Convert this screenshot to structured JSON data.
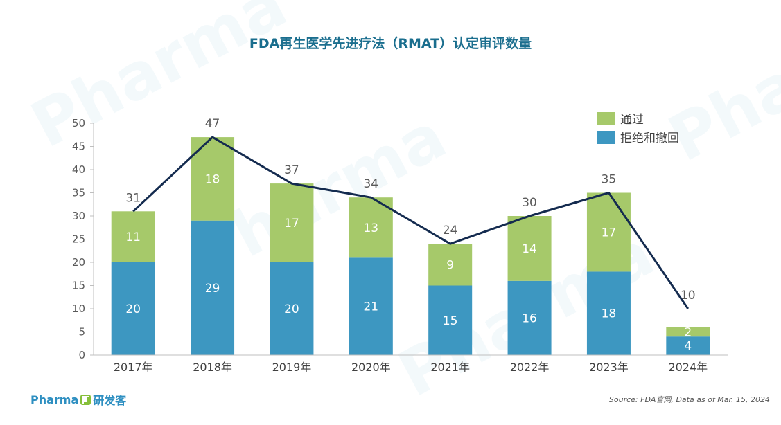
{
  "chart_data": {
    "type": "bar",
    "stacked": true,
    "title": "FDA再生医学先进疗法（RMAT）认定审评数量",
    "categories": [
      "2017年",
      "2018年",
      "2019年",
      "2020年",
      "2021年",
      "2022年",
      "2023年",
      "2024年"
    ],
    "series": [
      {
        "name": "拒绝和撤回",
        "color": "#3d97c1",
        "values": [
          20,
          29,
          20,
          21,
          15,
          16,
          18,
          4
        ]
      },
      {
        "name": "通过",
        "color": "#a6c96a",
        "values": [
          11,
          18,
          17,
          13,
          9,
          14,
          17,
          2
        ]
      }
    ],
    "line": {
      "values": [
        31,
        47,
        37,
        34,
        24,
        30,
        35,
        10
      ],
      "color": "#142b4f"
    },
    "ylim": [
      0,
      50
    ],
    "yticks": [
      0,
      5,
      10,
      15,
      20,
      25,
      30,
      35,
      40,
      45,
      50
    ],
    "legend": "top-right",
    "grid": false
  },
  "branding": {
    "en": "Pharma",
    "cn": "研发客"
  },
  "source": "Source: FDA官网, Data as of  Mar. 15, 2024"
}
